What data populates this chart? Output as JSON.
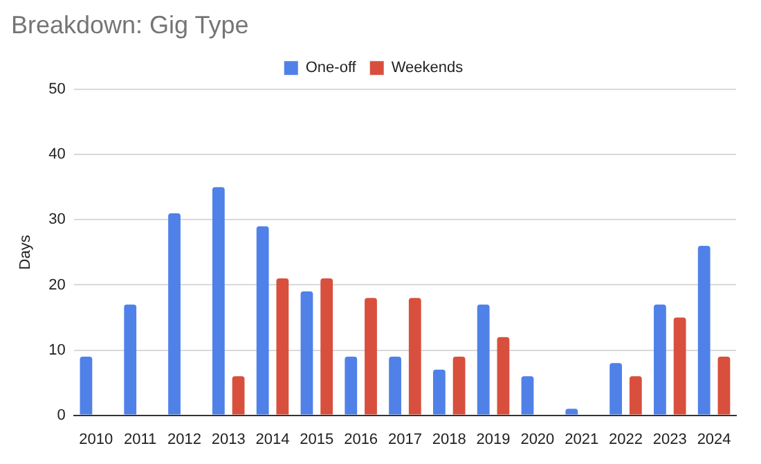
{
  "chart_data": {
    "type": "bar",
    "title": "Breakdown: Gig Type",
    "ylabel": "Days",
    "categories": [
      "2010",
      "2011",
      "2012",
      "2013",
      "2014",
      "2015",
      "2016",
      "2017",
      "2018",
      "2019",
      "2020",
      "2021",
      "2022",
      "2023",
      "2024"
    ],
    "series": [
      {
        "name": "One-off",
        "color": "#4f81e8",
        "values": [
          9,
          17,
          31,
          35,
          29,
          19,
          9,
          9,
          7,
          17,
          6,
          1,
          8,
          17,
          26
        ]
      },
      {
        "name": "Weekends",
        "color": "#d94f3d",
        "values": [
          null,
          null,
          null,
          6,
          21,
          21,
          18,
          18,
          9,
          12,
          null,
          null,
          6,
          15,
          9
        ]
      }
    ],
    "ylim": [
      0,
      50
    ],
    "yticks": [
      0,
      10,
      20,
      30,
      40,
      50
    ],
    "grid": "y",
    "legend": "top"
  }
}
